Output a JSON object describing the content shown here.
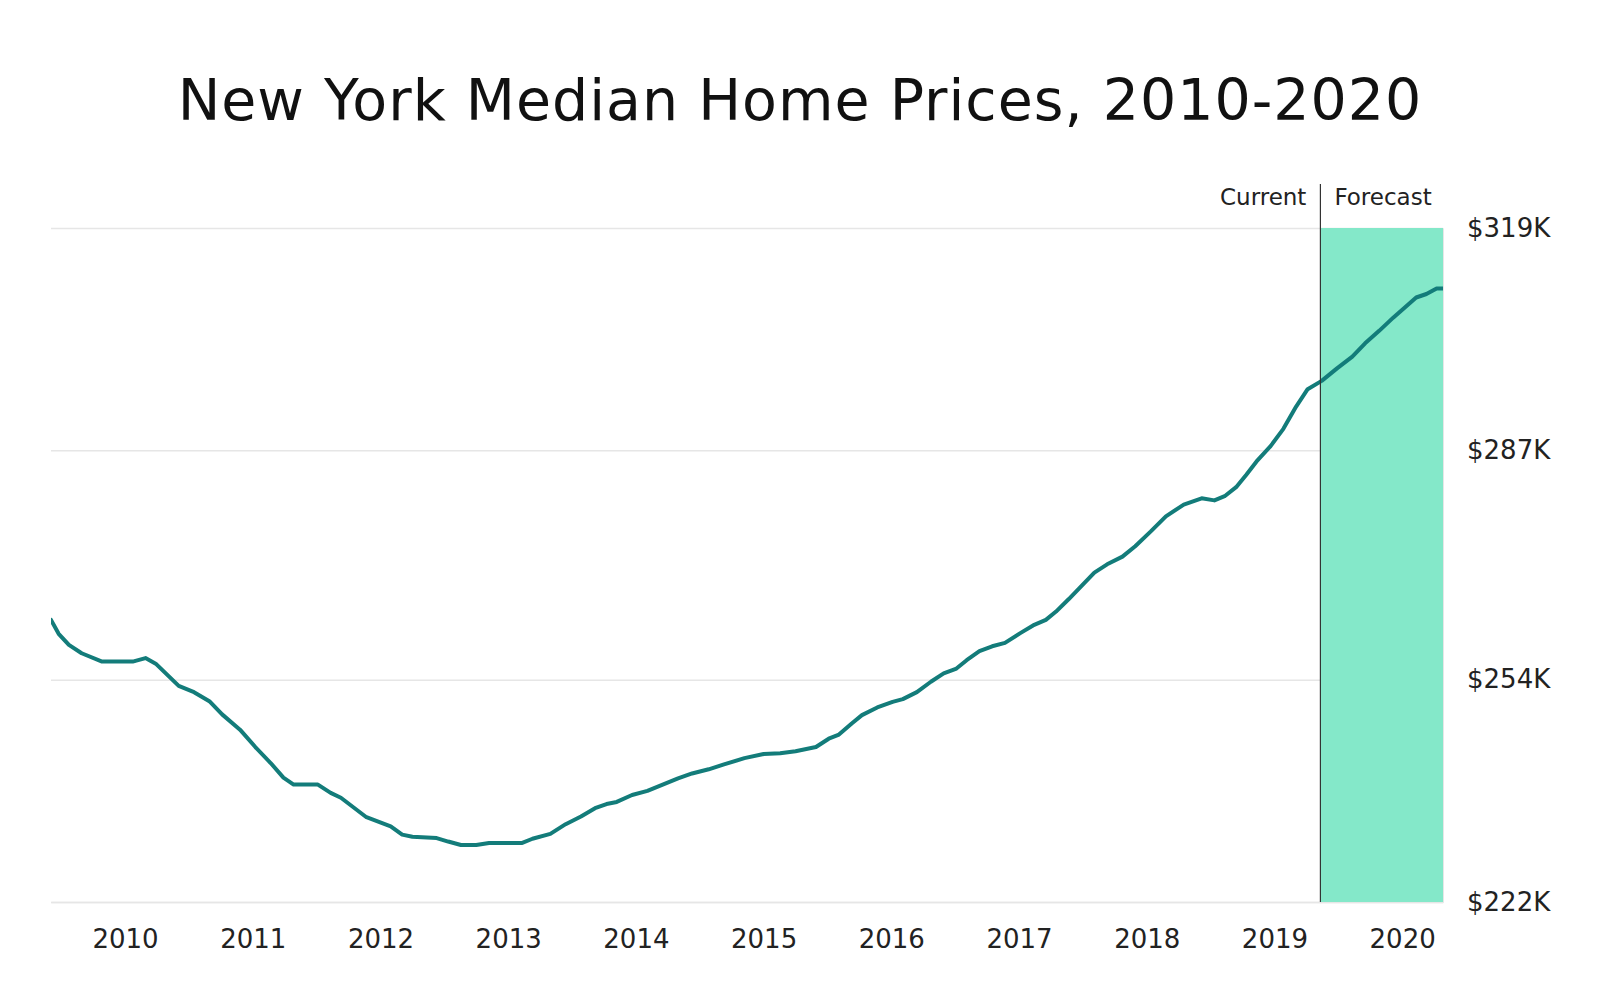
{
  "chart_data": {
    "type": "line",
    "title": "New York Median Home Prices, 2010-2020",
    "annotations": [
      "Current",
      "Forecast"
    ],
    "forecast_start": 2019.36,
    "color": "#137c7a",
    "grid": true,
    "xlim": [
      2009.42,
      2020.32
    ],
    "xticks": [
      2010,
      2011,
      2012,
      2013,
      2014,
      2015,
      2016,
      2017,
      2018,
      2019,
      2020
    ],
    "ylim": [
      222000,
      319000
    ],
    "yticks": [
      {
        "value": 222000,
        "label": "$222K"
      },
      {
        "value": 254000,
        "label": "$254K"
      },
      {
        "value": 287000,
        "label": "$287K"
      },
      {
        "value": 319000,
        "label": "$319K"
      }
    ],
    "x": [
      2009.42,
      2009.48,
      2009.56,
      2009.66,
      2009.82,
      2010.06,
      2010.16,
      2010.24,
      2010.42,
      2010.54,
      2010.66,
      2010.76,
      2010.9,
      2011.02,
      2011.14,
      2011.24,
      2011.32,
      2011.51,
      2011.61,
      2011.69,
      2011.79,
      2011.89,
      2012.08,
      2012.17,
      2012.25,
      2012.44,
      2012.53,
      2012.63,
      2012.75,
      2012.85,
      2013.11,
      2013.19,
      2013.33,
      2013.45,
      2013.57,
      2013.68,
      2013.77,
      2013.85,
      2013.97,
      2014.09,
      2014.21,
      2014.33,
      2014.44,
      2014.57,
      2014.69,
      2014.85,
      2015.0,
      2015.13,
      2015.25,
      2015.41,
      2015.51,
      2015.59,
      2015.69,
      2015.77,
      2015.89,
      2016.01,
      2016.09,
      2016.2,
      2016.31,
      2016.41,
      2016.51,
      2016.59,
      2016.69,
      2016.79,
      2016.89,
      2017.01,
      2017.11,
      2017.21,
      2017.29,
      2017.39,
      2017.49,
      2017.59,
      2017.69,
      2017.81,
      2017.91,
      2018.03,
      2018.15,
      2018.29,
      2018.43,
      2018.53,
      2018.61,
      2018.7,
      2018.78,
      2018.86,
      2018.97,
      2019.07,
      2019.17,
      2019.26,
      2019.37,
      2019.49,
      2019.61,
      2019.71,
      2019.82,
      2019.93,
      2020.03,
      2020.11,
      2020.19,
      2020.27,
      2020.32
    ],
    "values": [
      262600,
      260600,
      259000,
      257800,
      256600,
      256600,
      257100,
      256300,
      253100,
      252200,
      250900,
      249000,
      246800,
      244300,
      242000,
      239900,
      238900,
      238900,
      237700,
      237000,
      235600,
      234200,
      232900,
      231700,
      231400,
      231200,
      230700,
      230200,
      230200,
      230500,
      230500,
      231100,
      231800,
      233200,
      234300,
      235500,
      236100,
      236400,
      237400,
      238000,
      238900,
      239800,
      240500,
      241100,
      241800,
      242700,
      243300,
      243400,
      243700,
      244300,
      245500,
      246100,
      247700,
      248900,
      250000,
      250800,
      251200,
      252200,
      253700,
      254900,
      255600,
      256800,
      258100,
      258800,
      259300,
      260700,
      261800,
      262600,
      263800,
      265600,
      267500,
      269400,
      270600,
      271700,
      273200,
      275300,
      277500,
      279200,
      280100,
      279800,
      280400,
      281700,
      283500,
      285400,
      287600,
      290100,
      293300,
      295800,
      297000,
      298800,
      300500,
      302400,
      304200,
      306100,
      307700,
      309000,
      309500,
      310300,
      310300
    ]
  }
}
